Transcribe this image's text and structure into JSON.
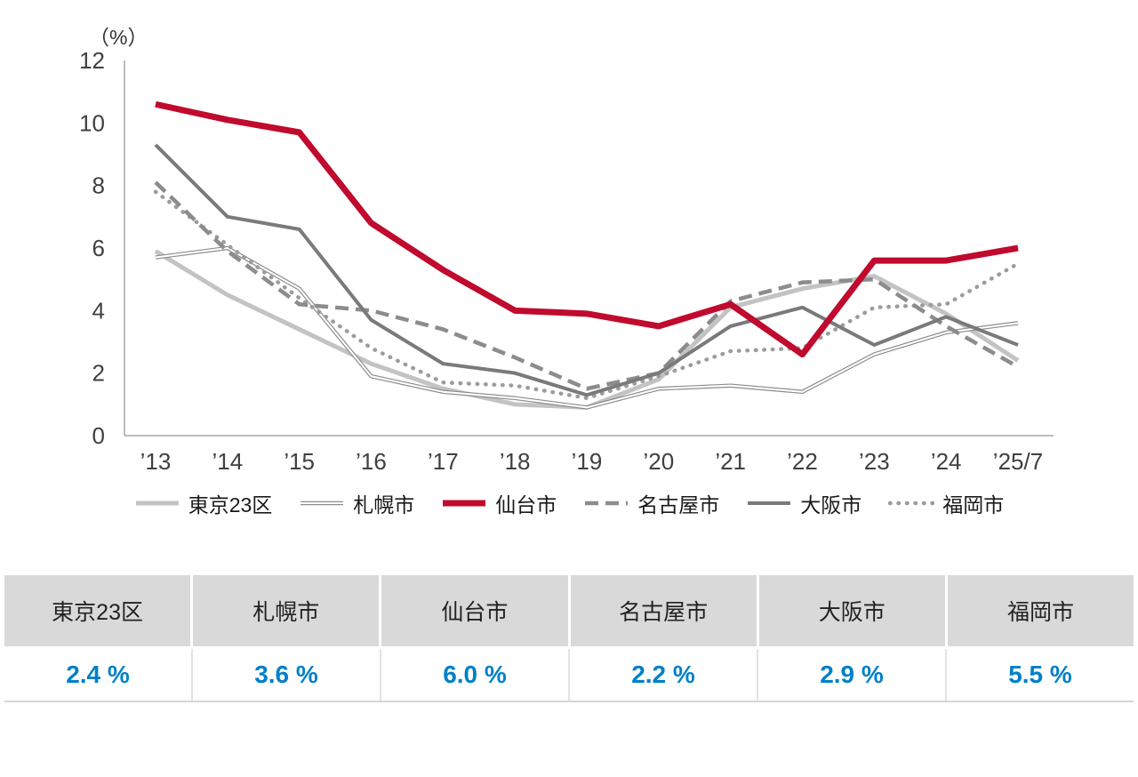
{
  "chart": {
    "unit_label": "（%）",
    "y_ticks": [
      12,
      10,
      8,
      6,
      4,
      2,
      0
    ]
  },
  "chart_data": {
    "type": "line",
    "title": "",
    "xlabel": "",
    "ylabel": "（%）",
    "ylim": [
      0,
      12
    ],
    "grid": false,
    "legend_position": "bottom",
    "categories": [
      "’13",
      "’14",
      "’15",
      "’16",
      "’17",
      "’18",
      "’19",
      "’20",
      "’21",
      "’22",
      "’23",
      "’24",
      "’25/7"
    ],
    "series": [
      {
        "name": "東京23区",
        "style": "thick",
        "color": "#c3c3c3",
        "values": [
          5.9,
          4.5,
          3.4,
          2.3,
          1.5,
          1.0,
          0.9,
          1.8,
          4.1,
          4.7,
          5.1,
          3.9,
          2.4
        ]
      },
      {
        "name": "札幌市",
        "style": "double",
        "color": "#8c8c8c",
        "values": [
          5.7,
          6.0,
          4.7,
          1.9,
          1.4,
          1.2,
          0.9,
          1.5,
          1.6,
          1.4,
          2.6,
          3.3,
          3.6
        ]
      },
      {
        "name": "仙台市",
        "style": "thick-red",
        "color": "#c00a2e",
        "values": [
          10.6,
          10.1,
          9.7,
          6.8,
          5.3,
          4.0,
          3.9,
          3.5,
          4.2,
          2.6,
          5.6,
          5.6,
          6.0
        ]
      },
      {
        "name": "名古屋市",
        "style": "dashed",
        "color": "#8c8c8c",
        "values": [
          8.1,
          5.9,
          4.2,
          4.0,
          3.4,
          2.5,
          1.5,
          2.0,
          4.3,
          4.9,
          5.0,
          3.5,
          2.2
        ]
      },
      {
        "name": "大阪市",
        "style": "solid",
        "color": "#7a7a7a",
        "values": [
          9.3,
          7.0,
          6.6,
          3.7,
          2.3,
          2.0,
          1.3,
          2.0,
          3.5,
          4.1,
          2.9,
          3.8,
          2.9
        ]
      },
      {
        "name": "福岡市",
        "style": "dotted",
        "color": "#9c9c9c",
        "values": [
          7.8,
          6.1,
          4.4,
          2.8,
          1.7,
          1.6,
          1.2,
          1.9,
          2.7,
          2.8,
          4.1,
          4.2,
          5.5
        ]
      }
    ]
  },
  "table": {
    "columns": [
      {
        "city": "東京23区",
        "value": "2.4 %"
      },
      {
        "city": "札幌市",
        "value": "3.6 %"
      },
      {
        "city": "仙台市",
        "value": "6.0 %"
      },
      {
        "city": "名古屋市",
        "value": "2.2 %"
      },
      {
        "city": "大阪市",
        "value": "2.9 %"
      },
      {
        "city": "福岡市",
        "value": "5.5 %"
      }
    ]
  },
  "colors": {
    "accent_red": "#c00a2e",
    "value_blue": "#0080c8",
    "table_header_bg": "#d9d9d9",
    "axis_gray": "#a6a6a6",
    "tick_text": "#404040"
  }
}
